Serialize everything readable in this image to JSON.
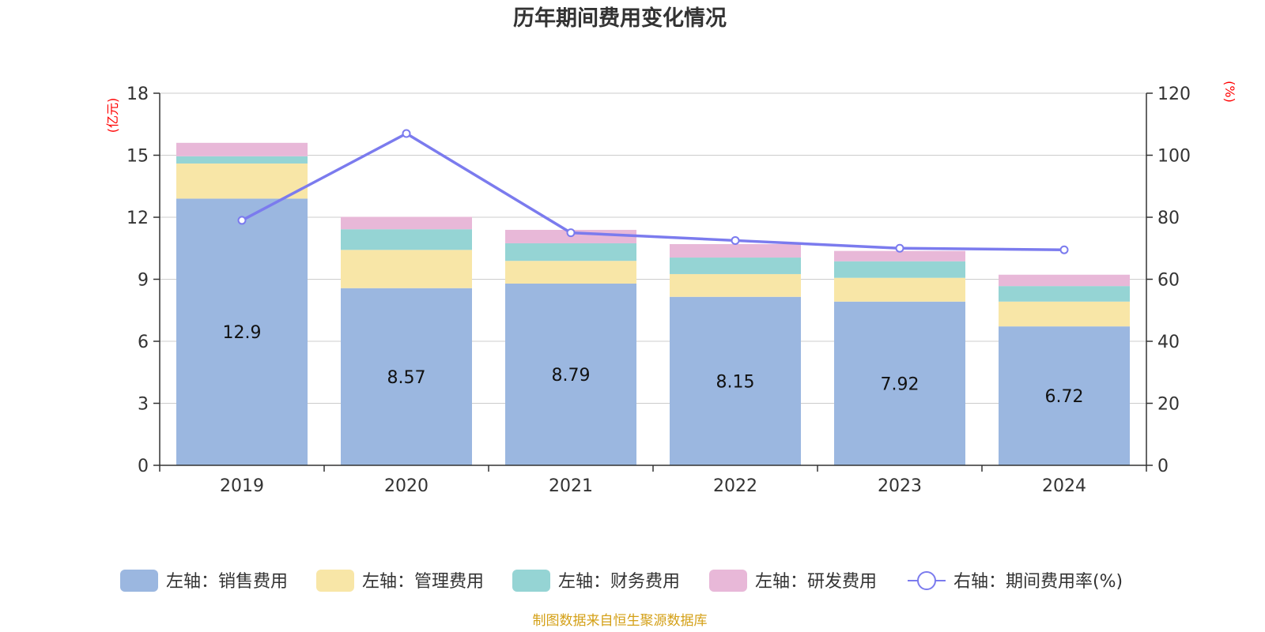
{
  "chart_data": {
    "type": "bar",
    "title": "历年期间费用变化情况",
    "categories": [
      "2019",
      "2020",
      "2021",
      "2022",
      "2023",
      "2024"
    ],
    "left_axis": {
      "unit": "(亿元)",
      "ylim": [
        0,
        18
      ],
      "ticks": [
        "0",
        "3",
        "6",
        "9",
        "12",
        "15",
        "18"
      ]
    },
    "right_axis": {
      "unit": "(%)",
      "ylim": [
        0,
        120
      ],
      "ticks": [
        "0",
        "20",
        "40",
        "60",
        "80",
        "100",
        "120"
      ]
    },
    "stacked": true,
    "grid": true,
    "legend_position": "bottom",
    "series": [
      {
        "name": "左轴：销售费用",
        "type": "bar",
        "axis": "left",
        "color": "#9bb7e0",
        "values": [
          12.9,
          8.57,
          8.79,
          8.15,
          7.92,
          6.72
        ],
        "labels": [
          "12.9",
          "8.57",
          "8.79",
          "8.15",
          "7.92",
          "6.72"
        ]
      },
      {
        "name": "左轴：管理费用",
        "type": "bar",
        "axis": "left",
        "color": "#f8e6a7",
        "values": [
          1.7,
          1.85,
          1.1,
          1.1,
          1.15,
          1.2
        ]
      },
      {
        "name": "左轴：财务费用",
        "type": "bar",
        "axis": "left",
        "color": "#95d4d4",
        "values": [
          0.35,
          1.0,
          0.85,
          0.8,
          0.8,
          0.75
        ]
      },
      {
        "name": "左轴：研发费用",
        "type": "bar",
        "axis": "left",
        "color": "#e8b8d8",
        "values": [
          0.65,
          0.6,
          0.65,
          0.65,
          0.5,
          0.55
        ]
      },
      {
        "name": "右轴：期间费用率(%)",
        "type": "line",
        "axis": "right",
        "color": "#7b7bee",
        "values": [
          79,
          107,
          75,
          72.5,
          70,
          69.5
        ]
      }
    ]
  },
  "source": "制图数据来自恒生聚源数据库"
}
